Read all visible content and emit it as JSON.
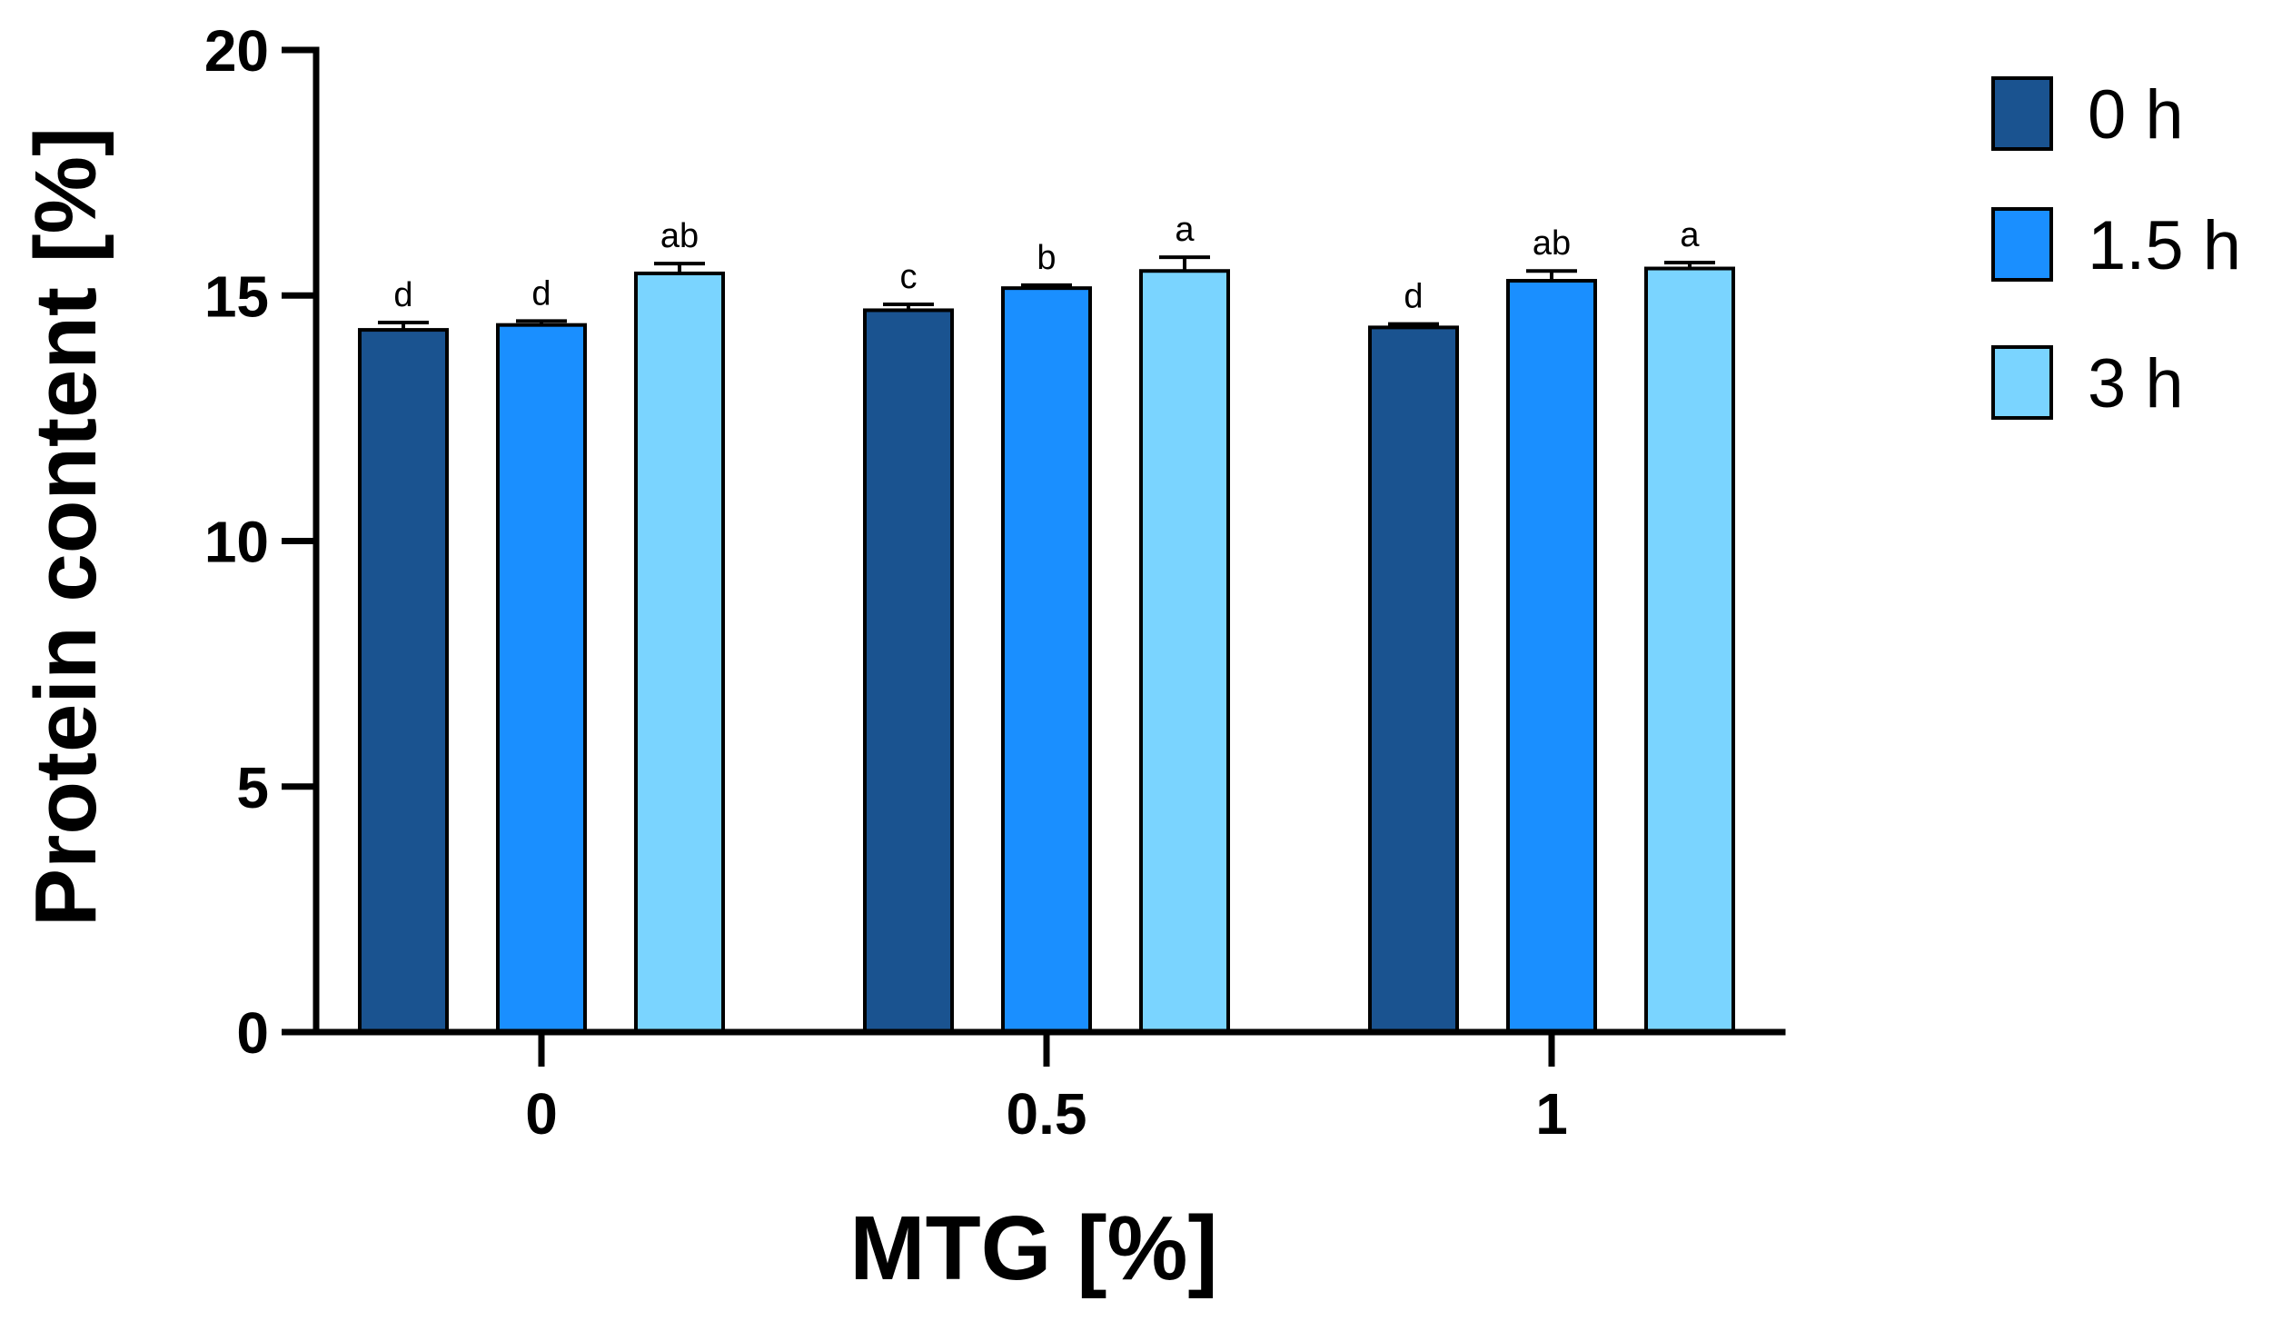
{
  "chart_data": {
    "type": "bar",
    "xlabel": "MTG [%]",
    "ylabel": "Protein content [%]",
    "ylim": [
      0,
      20
    ],
    "yticks": [
      0,
      5,
      10,
      15,
      20
    ],
    "categories": [
      "0",
      "0.5",
      "1"
    ],
    "series": [
      {
        "name": "0 h",
        "color": "#1a5390",
        "values": [
          14.3,
          14.7,
          14.35
        ],
        "errors": [
          0.15,
          0.12,
          0.07
        ],
        "labels": [
          "d",
          "c",
          "d"
        ]
      },
      {
        "name": "1.5 h",
        "color": "#1a8fff",
        "values": [
          14.4,
          15.15,
          15.3
        ],
        "errors": [
          0.08,
          0.06,
          0.2
        ],
        "labels": [
          "d",
          "b",
          "ab"
        ]
      },
      {
        "name": "3 h",
        "color": "#7ad4ff",
        "values": [
          15.45,
          15.5,
          15.55
        ],
        "errors": [
          0.2,
          0.28,
          0.12
        ],
        "labels": [
          "ab",
          "a",
          "a"
        ]
      }
    ],
    "grid": false,
    "legend": "top-right"
  }
}
